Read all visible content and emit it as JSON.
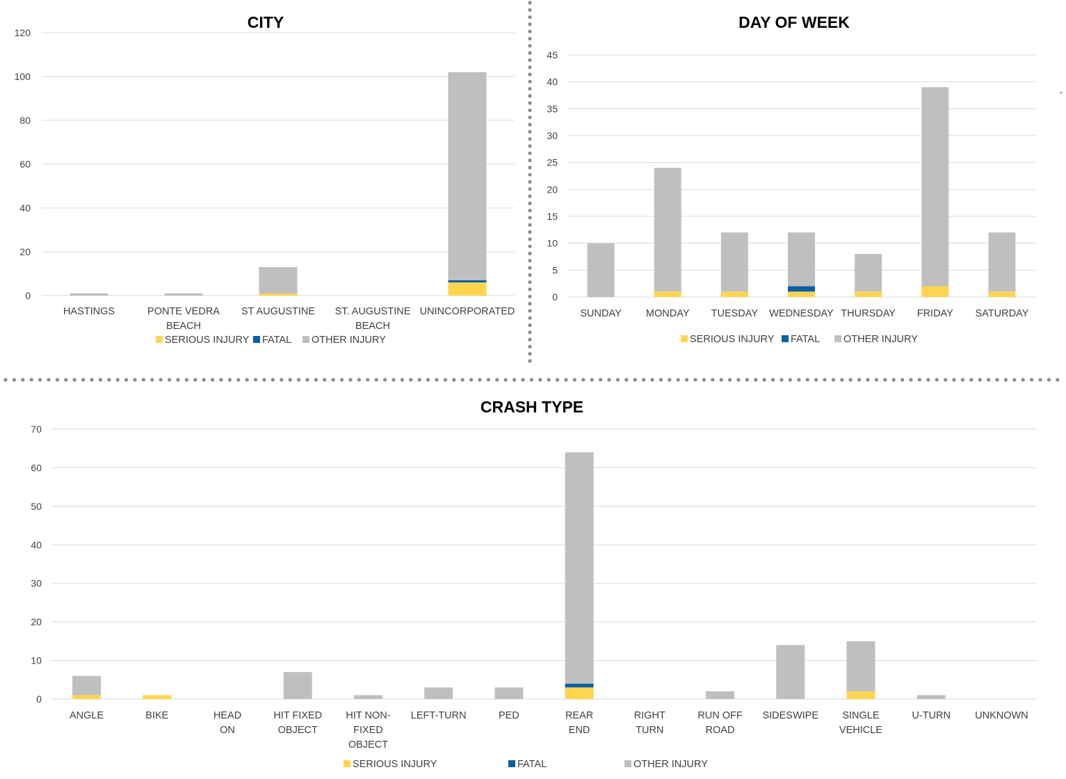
{
  "colors": {
    "serious": "#ffd54f",
    "fatal": "#0b5fa5",
    "other": "#bfbfbf",
    "separator": "#8c8c8c"
  },
  "chart_data": [
    {
      "id": "city",
      "type": "bar",
      "stacked": true,
      "title": "CITY",
      "categories": [
        "HASTINGS",
        "PONTE VEDRA BEACH",
        "ST AUGUSTINE",
        "ST. AUGUSTINE BEACH",
        "UNINCORPORATED"
      ],
      "category_lines": [
        [
          "HASTINGS"
        ],
        [
          "PONTE VEDRA",
          "BEACH"
        ],
        [
          "ST AUGUSTINE"
        ],
        [
          "ST. AUGUSTINE",
          "BEACH"
        ],
        [
          "UNINCORPORATED"
        ]
      ],
      "series": [
        {
          "name": "SERIOUS INJURY",
          "color_key": "serious",
          "values": [
            0,
            0,
            1,
            0,
            6
          ]
        },
        {
          "name": "FATAL",
          "color_key": "fatal",
          "values": [
            0,
            0,
            0,
            0,
            1
          ]
        },
        {
          "name": "OTHER INJURY",
          "color_key": "other",
          "values": [
            1,
            1,
            12,
            0,
            95
          ]
        }
      ],
      "ylim": [
        0,
        120
      ],
      "yticks": [
        0,
        20,
        40,
        60,
        80,
        100,
        120
      ],
      "grid": true,
      "legend": "bottom",
      "xlabel": "",
      "ylabel": ""
    },
    {
      "id": "day",
      "type": "bar",
      "stacked": true,
      "title": "DAY OF WEEK",
      "categories": [
        "SUNDAY",
        "MONDAY",
        "TUESDAY",
        "WEDNESDAY",
        "THURSDAY",
        "FRIDAY",
        "SATURDAY"
      ],
      "category_lines": [
        [
          "SUNDAY"
        ],
        [
          "MONDAY"
        ],
        [
          "TUESDAY"
        ],
        [
          "WEDNESDAY"
        ],
        [
          "THURSDAY"
        ],
        [
          "FRIDAY"
        ],
        [
          "SATURDAY"
        ]
      ],
      "series": [
        {
          "name": "SERIOUS INJURY",
          "color_key": "serious",
          "values": [
            0,
            1,
            1,
            1,
            1,
            2,
            1
          ]
        },
        {
          "name": "FATAL",
          "color_key": "fatal",
          "values": [
            0,
            0,
            0,
            1,
            0,
            0,
            0
          ]
        },
        {
          "name": "OTHER INJURY",
          "color_key": "other",
          "values": [
            10,
            23,
            11,
            10,
            7,
            37,
            11
          ]
        }
      ],
      "ylim": [
        0,
        45
      ],
      "yticks": [
        0,
        5,
        10,
        15,
        20,
        25,
        30,
        35,
        40,
        45
      ],
      "grid": true,
      "legend": "bottom",
      "xlabel": "",
      "ylabel": ""
    },
    {
      "id": "crash",
      "type": "bar",
      "stacked": true,
      "title": "CRASH TYPE",
      "categories": [
        "ANGLE",
        "BIKE",
        "HEAD ON",
        "HIT FIXED OBJECT",
        "HIT NON-FIXED OBJECT",
        "LEFT-TURN",
        "PED",
        "REAR END",
        "RIGHT TURN",
        "RUN OFF ROAD",
        "SIDESWIPE",
        "SINGLE VEHICLE",
        "U-TURN",
        "UNKNOWN"
      ],
      "category_lines": [
        [
          "ANGLE"
        ],
        [
          "BIKE"
        ],
        [
          "HEAD",
          "ON"
        ],
        [
          "HIT FIXED",
          "OBJECT"
        ],
        [
          "HIT NON-",
          "FIXED",
          "OBJECT"
        ],
        [
          "LEFT-TURN"
        ],
        [
          "PED"
        ],
        [
          "REAR",
          "END"
        ],
        [
          "RIGHT",
          "TURN"
        ],
        [
          "RUN OFF",
          "ROAD"
        ],
        [
          "SIDESWIPE"
        ],
        [
          "SINGLE",
          "VEHICLE"
        ],
        [
          "U-TURN"
        ],
        [
          "UNKNOWN"
        ]
      ],
      "series": [
        {
          "name": "SERIOUS INJURY",
          "color_key": "serious",
          "values": [
            1,
            1,
            0,
            0,
            0,
            0,
            0,
            3,
            0,
            0,
            0,
            2,
            0,
            0
          ]
        },
        {
          "name": "FATAL",
          "color_key": "fatal",
          "values": [
            0,
            0,
            0,
            0,
            0,
            0,
            0,
            1,
            0,
            0,
            0,
            0,
            0,
            0
          ]
        },
        {
          "name": "OTHER INJURY",
          "color_key": "other",
          "values": [
            5,
            0,
            0,
            7,
            1,
            3,
            3,
            60,
            0,
            2,
            14,
            13,
            1,
            0
          ]
        }
      ],
      "ylim": [
        0,
        70
      ],
      "yticks": [
        0,
        10,
        20,
        30,
        40,
        50,
        60,
        70
      ],
      "grid": true,
      "legend": "bottom",
      "xlabel": "",
      "ylabel": ""
    }
  ]
}
